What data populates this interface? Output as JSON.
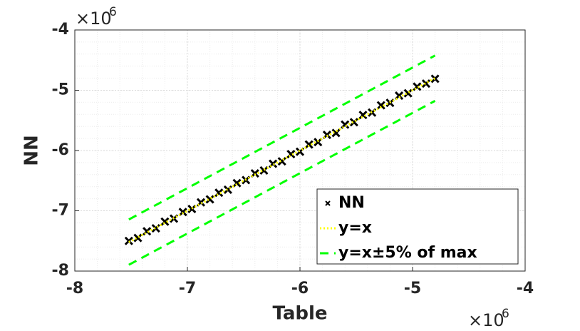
{
  "chart_data": {
    "type": "scatter",
    "xlabel": "Table",
    "ylabel": "NN",
    "x_multiplier": "×10",
    "x_multiplier_power": "6",
    "y_multiplier": "×10",
    "y_multiplier_power": "6",
    "xlim": [
      -8,
      -4
    ],
    "ylim": [
      -8,
      -4
    ],
    "xticks": [
      -8,
      -7,
      -6,
      -5,
      -4
    ],
    "yticks": [
      -8,
      -7,
      -6,
      -5,
      -4
    ],
    "grid": true,
    "legend": "lower right",
    "series": [
      {
        "name": "NN",
        "color": "#000000",
        "marker": "x",
        "x": [
          -7.52,
          -7.44,
          -7.36,
          -7.28,
          -7.2,
          -7.12,
          -7.04,
          -6.96,
          -6.88,
          -6.8,
          -6.72,
          -6.64,
          -6.56,
          -6.48,
          -6.4,
          -6.32,
          -6.24,
          -6.16,
          -6.08,
          -6.0,
          -5.92,
          -5.84,
          -5.76,
          -5.68,
          -5.6,
          -5.52,
          -5.44,
          -5.36,
          -5.28,
          -5.2,
          -5.12,
          -5.04,
          -4.96,
          -4.88,
          -4.8
        ],
        "values": [
          -7.5,
          -7.45,
          -7.34,
          -7.29,
          -7.18,
          -7.13,
          -7.02,
          -6.97,
          -6.86,
          -6.81,
          -6.7,
          -6.65,
          -6.54,
          -6.49,
          -6.38,
          -6.33,
          -6.22,
          -6.18,
          -6.06,
          -6.02,
          -5.9,
          -5.86,
          -5.74,
          -5.71,
          -5.57,
          -5.53,
          -5.41,
          -5.37,
          -5.25,
          -5.21,
          -5.09,
          -5.05,
          -4.94,
          -4.89,
          -4.81
        ]
      },
      {
        "name": "y=x",
        "color": "#ffff00",
        "style": "dotted",
        "x": [
          -7.52,
          -4.8
        ],
        "values": [
          -7.52,
          -4.8
        ]
      },
      {
        "name": "y=x±5% of max",
        "color": "#00ff00",
        "style": "dashed",
        "x": [
          -7.52,
          -4.8
        ],
        "upper": [
          -7.144,
          -4.424
        ],
        "lower": [
          -7.896,
          -5.176
        ]
      }
    ]
  }
}
